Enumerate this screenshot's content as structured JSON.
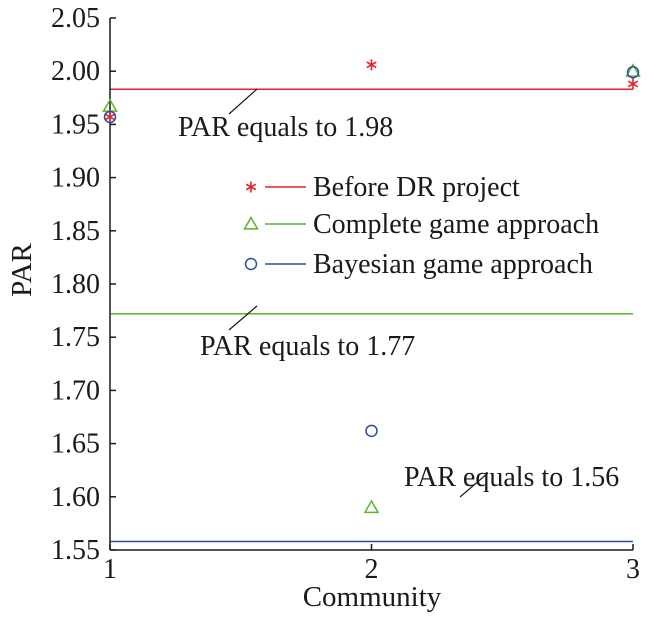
{
  "chart_data": {
    "type": "scatter",
    "xlabel": "Community",
    "ylabel": "PAR",
    "xlim": [
      1,
      3
    ],
    "ylim": [
      1.55,
      2.05
    ],
    "x_ticks": [
      "1",
      "2",
      "3"
    ],
    "y_ticks": [
      "1.55",
      "1.60",
      "1.65",
      "1.70",
      "1.75",
      "1.80",
      "1.85",
      "1.90",
      "1.95",
      "2.00",
      "2.05"
    ],
    "legend_position": "center-right",
    "series": [
      {
        "name": "Before DR project",
        "marker": "asterisk",
        "color": "#e8202a",
        "x": [
          1,
          2,
          3
        ],
        "y": [
          1.957,
          2.006,
          1.988
        ]
      },
      {
        "name": "Complete game approach",
        "marker": "triangle",
        "color": "#5ab528",
        "x": [
          1,
          2,
          3
        ],
        "y": [
          1.967,
          1.59,
          2.0
        ]
      },
      {
        "name": "Bayesian game approach",
        "marker": "circle",
        "color": "#2b4ea2",
        "x": [
          1,
          2,
          3
        ],
        "y": [
          1.957,
          1.662,
          1.999
        ]
      }
    ],
    "reference_lines": [
      {
        "value": 1.983,
        "color": "#e8202a",
        "label": "PAR equals to 1.98"
      },
      {
        "value": 1.772,
        "color": "#5ab528",
        "label": "PAR equals to 1.77"
      },
      {
        "value": 1.558,
        "color": "#2b4ea2",
        "label": "PAR equals to 1.56"
      }
    ]
  }
}
